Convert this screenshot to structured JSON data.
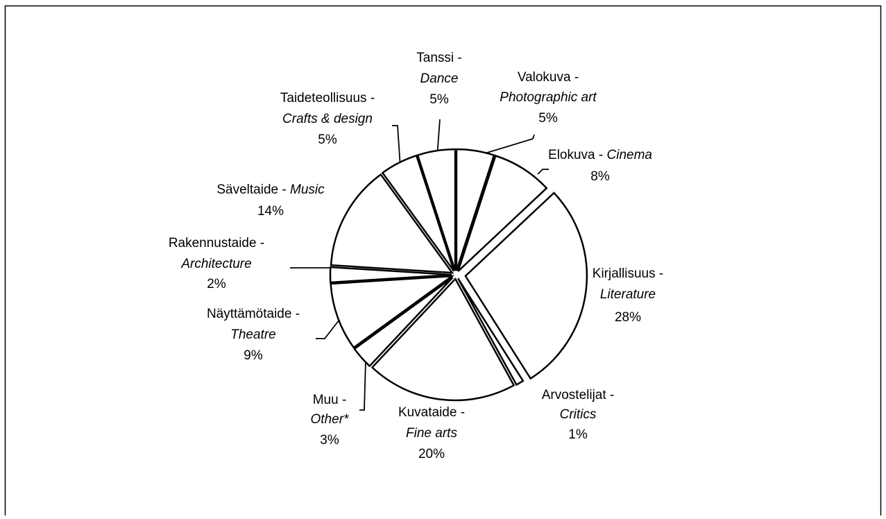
{
  "chart_data": {
    "type": "pie",
    "categories": [
      "Valokuva -",
      "Elokuva -",
      "Kirjallisuus -",
      "Arvostelijat -",
      "Kuvataide -",
      "Muu -",
      "Näyttämötaide -",
      "Rakennustaide -",
      "Säveltaide -",
      "Taideteollisuus -",
      "Tanssi -"
    ],
    "categories_en": [
      "Photographic art",
      "Cinema",
      "Literature",
      "Critics",
      "Fine arts",
      "Other*",
      "Theatre",
      "Architecture",
      "Music",
      "Crafts & design",
      "Dance"
    ],
    "values": [
      5,
      8,
      28,
      1,
      20,
      3,
      9,
      2,
      14,
      5,
      5
    ],
    "value_labels": [
      "5%",
      "8%",
      "28%",
      "1%",
      "20%",
      "3%",
      "9%",
      "2%",
      "14%",
      "5%",
      "5%"
    ],
    "color": "#ffffff"
  }
}
